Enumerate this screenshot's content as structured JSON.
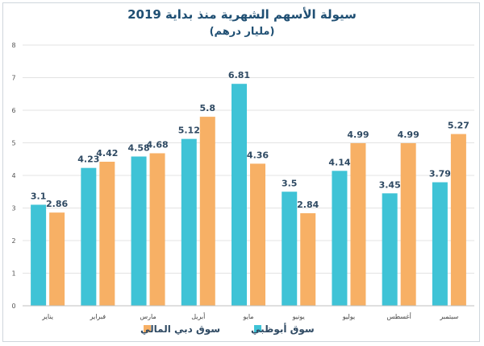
{
  "chart_data": {
    "type": "bar",
    "title": "سيولة الأسهم الشهرية منذ بداية 2019",
    "subtitle": "(مليار درهم)",
    "categories": [
      "يناير",
      "فبراير",
      "مارس",
      "أبريل",
      "مايو",
      "يونيو",
      "يوليو",
      "أغسطس",
      "سبتمبر"
    ],
    "series": [
      {
        "name": "سوق أبوظبي",
        "color": "#3fc3d6",
        "values": [
          3.1,
          4.23,
          4.58,
          5.12,
          6.81,
          3.5,
          4.14,
          3.45,
          3.79
        ]
      },
      {
        "name": "سوق دبي المالي",
        "color": "#f7b065",
        "values": [
          2.86,
          4.42,
          4.68,
          5.8,
          4.36,
          2.84,
          4.99,
          4.99,
          5.27
        ]
      }
    ],
    "data_labels": [
      [
        "3.1",
        "4.23",
        "4.58",
        "5.12",
        "6.81",
        "3.5",
        "4.14",
        "3.45",
        "3.79"
      ],
      [
        "2.86",
        "4.42",
        "4.68",
        "5.8",
        "4.36",
        "2.84",
        "4.99",
        "4.99",
        "5.27"
      ]
    ],
    "ylim": [
      0,
      8
    ],
    "yticks": [
      0,
      1,
      2,
      3,
      4,
      5,
      6,
      7,
      8
    ],
    "grid": true,
    "legend": "bottom-center"
  }
}
